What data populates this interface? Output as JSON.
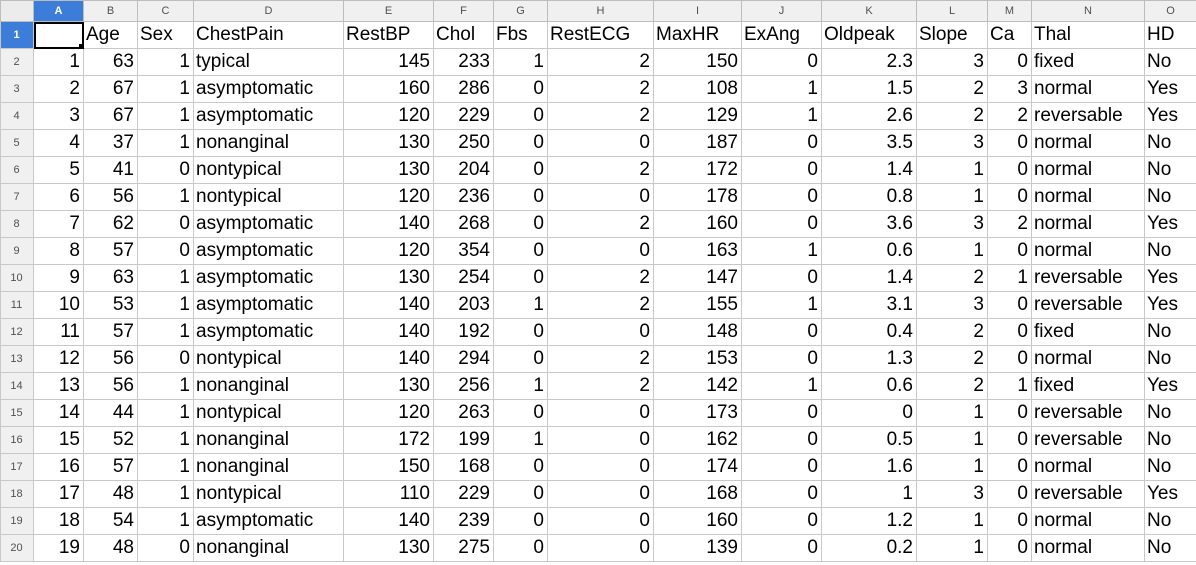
{
  "sheet": {
    "column_letters": [
      "A",
      "B",
      "C",
      "D",
      "E",
      "F",
      "G",
      "H",
      "I",
      "J",
      "K",
      "L",
      "M",
      "N",
      "O"
    ],
    "selected_column": "A",
    "selected_row": "1",
    "headers": [
      "",
      "Age",
      "Sex",
      "ChestPain",
      "RestBP",
      "Chol",
      "Fbs",
      "RestECG",
      "MaxHR",
      "ExAng",
      "Oldpeak",
      "Slope",
      "Ca",
      "Thal",
      "HD"
    ],
    "column_align": [
      "num",
      "num",
      "num",
      "txt",
      "num",
      "num",
      "num",
      "num",
      "num",
      "num",
      "num",
      "num",
      "num",
      "txt",
      "txt"
    ],
    "rows": [
      [
        "1",
        "63",
        "1",
        "typical",
        "145",
        "233",
        "1",
        "2",
        "150",
        "0",
        "2.3",
        "3",
        "0",
        "fixed",
        "No"
      ],
      [
        "2",
        "67",
        "1",
        "asymptomatic",
        "160",
        "286",
        "0",
        "2",
        "108",
        "1",
        "1.5",
        "2",
        "3",
        "normal",
        "Yes"
      ],
      [
        "3",
        "67",
        "1",
        "asymptomatic",
        "120",
        "229",
        "0",
        "2",
        "129",
        "1",
        "2.6",
        "2",
        "2",
        "reversable",
        "Yes"
      ],
      [
        "4",
        "37",
        "1",
        "nonanginal",
        "130",
        "250",
        "0",
        "0",
        "187",
        "0",
        "3.5",
        "3",
        "0",
        "normal",
        "No"
      ],
      [
        "5",
        "41",
        "0",
        "nontypical",
        "130",
        "204",
        "0",
        "2",
        "172",
        "0",
        "1.4",
        "1",
        "0",
        "normal",
        "No"
      ],
      [
        "6",
        "56",
        "1",
        "nontypical",
        "120",
        "236",
        "0",
        "0",
        "178",
        "0",
        "0.8",
        "1",
        "0",
        "normal",
        "No"
      ],
      [
        "7",
        "62",
        "0",
        "asymptomatic",
        "140",
        "268",
        "0",
        "2",
        "160",
        "0",
        "3.6",
        "3",
        "2",
        "normal",
        "Yes"
      ],
      [
        "8",
        "57",
        "0",
        "asymptomatic",
        "120",
        "354",
        "0",
        "0",
        "163",
        "1",
        "0.6",
        "1",
        "0",
        "normal",
        "No"
      ],
      [
        "9",
        "63",
        "1",
        "asymptomatic",
        "130",
        "254",
        "0",
        "2",
        "147",
        "0",
        "1.4",
        "2",
        "1",
        "reversable",
        "Yes"
      ],
      [
        "10",
        "53",
        "1",
        "asymptomatic",
        "140",
        "203",
        "1",
        "2",
        "155",
        "1",
        "3.1",
        "3",
        "0",
        "reversable",
        "Yes"
      ],
      [
        "11",
        "57",
        "1",
        "asymptomatic",
        "140",
        "192",
        "0",
        "0",
        "148",
        "0",
        "0.4",
        "2",
        "0",
        "fixed",
        "No"
      ],
      [
        "12",
        "56",
        "0",
        "nontypical",
        "140",
        "294",
        "0",
        "2",
        "153",
        "0",
        "1.3",
        "2",
        "0",
        "normal",
        "No"
      ],
      [
        "13",
        "56",
        "1",
        "nonanginal",
        "130",
        "256",
        "1",
        "2",
        "142",
        "1",
        "0.6",
        "2",
        "1",
        "fixed",
        "Yes"
      ],
      [
        "14",
        "44",
        "1",
        "nontypical",
        "120",
        "263",
        "0",
        "0",
        "173",
        "0",
        "0",
        "1",
        "0",
        "reversable",
        "No"
      ],
      [
        "15",
        "52",
        "1",
        "nonanginal",
        "172",
        "199",
        "1",
        "0",
        "162",
        "0",
        "0.5",
        "1",
        "0",
        "reversable",
        "No"
      ],
      [
        "16",
        "57",
        "1",
        "nonanginal",
        "150",
        "168",
        "0",
        "0",
        "174",
        "0",
        "1.6",
        "1",
        "0",
        "normal",
        "No"
      ],
      [
        "17",
        "48",
        "1",
        "nontypical",
        "110",
        "229",
        "0",
        "0",
        "168",
        "0",
        "1",
        "3",
        "0",
        "reversable",
        "Yes"
      ],
      [
        "18",
        "54",
        "1",
        "asymptomatic",
        "140",
        "239",
        "0",
        "0",
        "160",
        "0",
        "1.2",
        "1",
        "0",
        "normal",
        "No"
      ],
      [
        "19",
        "48",
        "0",
        "nonanginal",
        "130",
        "275",
        "0",
        "0",
        "139",
        "0",
        "0.2",
        "1",
        "0",
        "normal",
        "No"
      ]
    ]
  }
}
